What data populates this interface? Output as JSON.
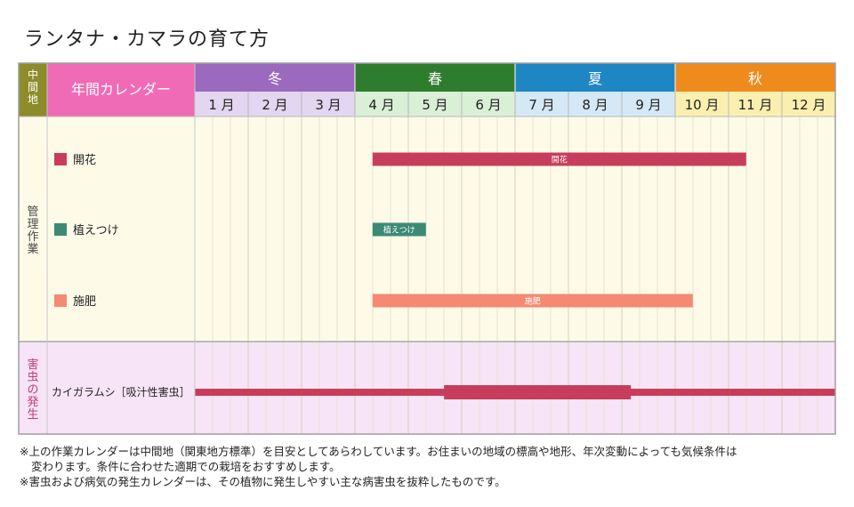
{
  "title": "ランタナ・カマラの育て方",
  "calendar": {
    "region_label": "中間地",
    "header_label": "年間カレンダー",
    "seasons": [
      {
        "label": "冬",
        "color": "#9b6abf",
        "months": [
          1,
          2,
          3
        ]
      },
      {
        "label": "春",
        "color": "#2e7d2e",
        "months": [
          4,
          5,
          6
        ]
      },
      {
        "label": "夏",
        "color": "#1f86c4",
        "months": [
          7,
          8,
          9
        ]
      },
      {
        "label": "秋",
        "color": "#ef8a1d",
        "months": [
          10,
          11,
          12
        ]
      }
    ],
    "months": [
      "1 月",
      "2 月",
      "3 月",
      "4 月",
      "5 月",
      "6 月",
      "7 月",
      "8 月",
      "9 月",
      "10 月",
      "11 月",
      "12 月"
    ],
    "month_fill_colors": [
      "#e2d6f0",
      "#e2d6f0",
      "#e2d6f0",
      "#d9efd6",
      "#d9efd6",
      "#d9efd6",
      "#d4e8f5",
      "#d4e8f5",
      "#d4e8f5",
      "#fbefb0",
      "#fbefb0",
      "#fbefb0"
    ],
    "management_label": "管理作業",
    "pest_label": "害虫の発生",
    "header_color": "#f06bb5"
  },
  "chart_data": {
    "type": "gantt",
    "axis": "month",
    "x_range": [
      1,
      13
    ],
    "tasks": [
      {
        "group": "management",
        "name": "開花",
        "bar_label": "開花",
        "color": "#c83d5c",
        "segments": [
          [
            4.33,
            11.33
          ]
        ]
      },
      {
        "group": "management",
        "name": "植えつけ",
        "bar_label": "植えつけ",
        "color": "#3c8a73",
        "segments": [
          [
            4.33,
            5.33
          ]
        ]
      },
      {
        "group": "management",
        "name": "施肥",
        "bar_label": "施肥",
        "color": "#f48a73",
        "segments": [
          [
            4.33,
            10.33
          ]
        ]
      }
    ],
    "pests": [
      {
        "name": "カイガラムシ［吸汁性害虫］",
        "color": "#c83d5c",
        "segments": [
          {
            "start": 1,
            "end": 13,
            "level": "low"
          },
          {
            "start": 5.67,
            "end": 9.17,
            "level": "high"
          }
        ]
      }
    ]
  },
  "notes": [
    "※上の作業カレンダーは中間地（関東地方標準）を目安としてあらわしています。お住まいの地域の標高や地形、年次変動によっても気候条件は",
    "変わります。条件に合わせた適期での栽培をおすすめします。",
    "※害虫および病気の発生カレンダーは、その植物に発生しやすい主な病害虫を抜粋したものです。"
  ]
}
